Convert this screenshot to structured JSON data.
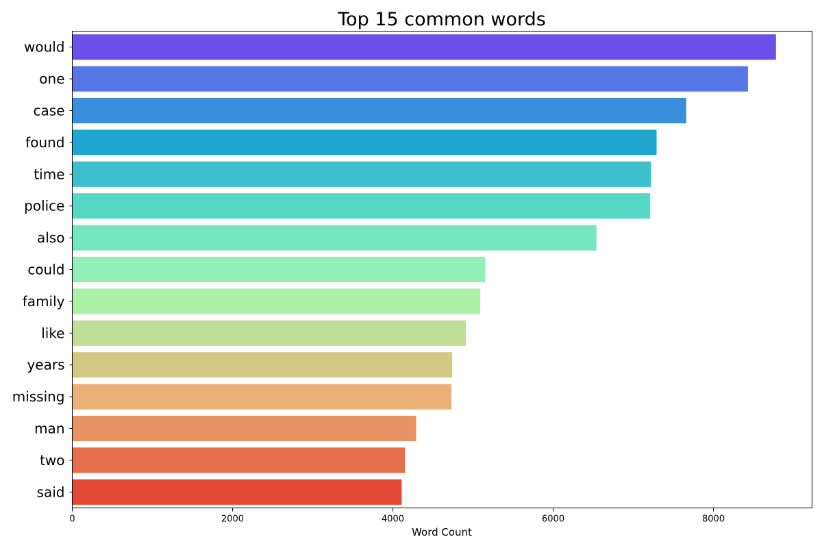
{
  "chart_data": {
    "type": "bar",
    "orientation": "horizontal",
    "title": "Top 15 common words",
    "xlabel": "Word Count",
    "ylabel": "",
    "categories": [
      "would",
      "one",
      "case",
      "found",
      "time",
      "police",
      "also",
      "could",
      "family",
      "like",
      "years",
      "missing",
      "man",
      "two",
      "said"
    ],
    "values": [
      8780,
      8430,
      7660,
      7290,
      7220,
      7210,
      6540,
      5150,
      5090,
      4910,
      4740,
      4730,
      4290,
      4150,
      4110
    ],
    "colors": [
      "#6a4fe8",
      "#5776e5",
      "#3a8fdc",
      "#1fa6cf",
      "#3cc0cb",
      "#56d8c6",
      "#74e7c0",
      "#92f0b6",
      "#acf0a8",
      "#c0df96",
      "#d3c884",
      "#ebb077",
      "#e79363",
      "#e56e4d",
      "#e24834"
    ],
    "xlim": [
      0,
      9230
    ],
    "xticks": [
      0,
      2000,
      4000,
      6000,
      8000
    ],
    "xtick_labels": [
      "0",
      "2000",
      "4000",
      "6000",
      "8000"
    ],
    "grid": false,
    "legend": "none"
  }
}
